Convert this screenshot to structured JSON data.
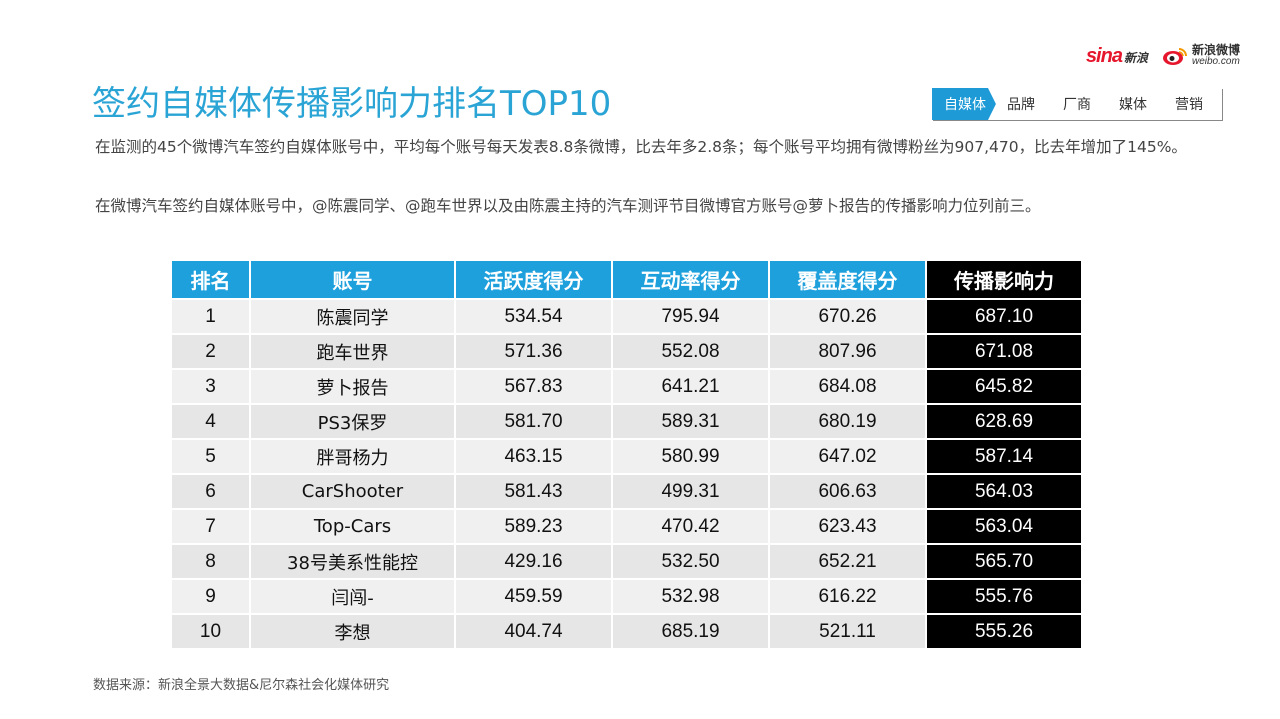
{
  "brand": {
    "sina_word": "sina",
    "sina_cn": "新浪",
    "weibo_cn": "新浪微博",
    "weibo_en": "weibo.com"
  },
  "title": "签约自媒体传播影响力排名TOP10",
  "nav": [
    "自媒体",
    "品牌",
    "厂商",
    "媒体",
    "营销"
  ],
  "paragraphs": [
    "在监测的45个微博汽车签约自媒体账号中，平均每个账号每天发表8.8条微博，比去年多2.8条；每个账号平均拥有微博粉丝为907,470，比去年增加了145%。",
    "在微博汽车签约自媒体账号中，@陈震同学、@跑车世界以及由陈震主持的汽车测评节目微博官方账号@萝卜报告的传播影响力位列前三。"
  ],
  "table": {
    "headers": [
      "排名",
      "账号",
      "活跃度得分",
      "互动率得分",
      "覆盖度得分",
      "传播影响力"
    ],
    "rows": [
      [
        "1",
        "陈震同学",
        "534.54",
        "795.94",
        "670.26",
        "687.10"
      ],
      [
        "2",
        "跑车世界",
        "571.36",
        "552.08",
        "807.96",
        "671.08"
      ],
      [
        "3",
        "萝卜报告",
        "567.83",
        "641.21",
        "684.08",
        "645.82"
      ],
      [
        "4",
        "PS3保罗",
        "581.70",
        "589.31",
        "680.19",
        "628.69"
      ],
      [
        "5",
        "胖哥杨力",
        "463.15",
        "580.99",
        "647.02",
        "587.14"
      ],
      [
        "6",
        "CarShooter",
        "581.43",
        "499.31",
        "606.63",
        "564.03"
      ],
      [
        "7",
        "Top-Cars",
        "589.23",
        "470.42",
        "623.43",
        "563.04"
      ],
      [
        "8",
        "38号美系性能控",
        "429.16",
        "532.50",
        "652.21",
        "565.70"
      ],
      [
        "9",
        "闫闯-",
        "459.59",
        "532.98",
        "616.22",
        "555.76"
      ],
      [
        "10",
        "李想",
        "404.74",
        "685.19",
        "521.11",
        "555.26"
      ]
    ]
  },
  "source": "数据来源：新浪全景大数据&尼尔森社会化媒体研究",
  "colors": {
    "accent": "#1ea0dc",
    "title": "#2aa4d5",
    "brand_red": "#e6162d"
  }
}
